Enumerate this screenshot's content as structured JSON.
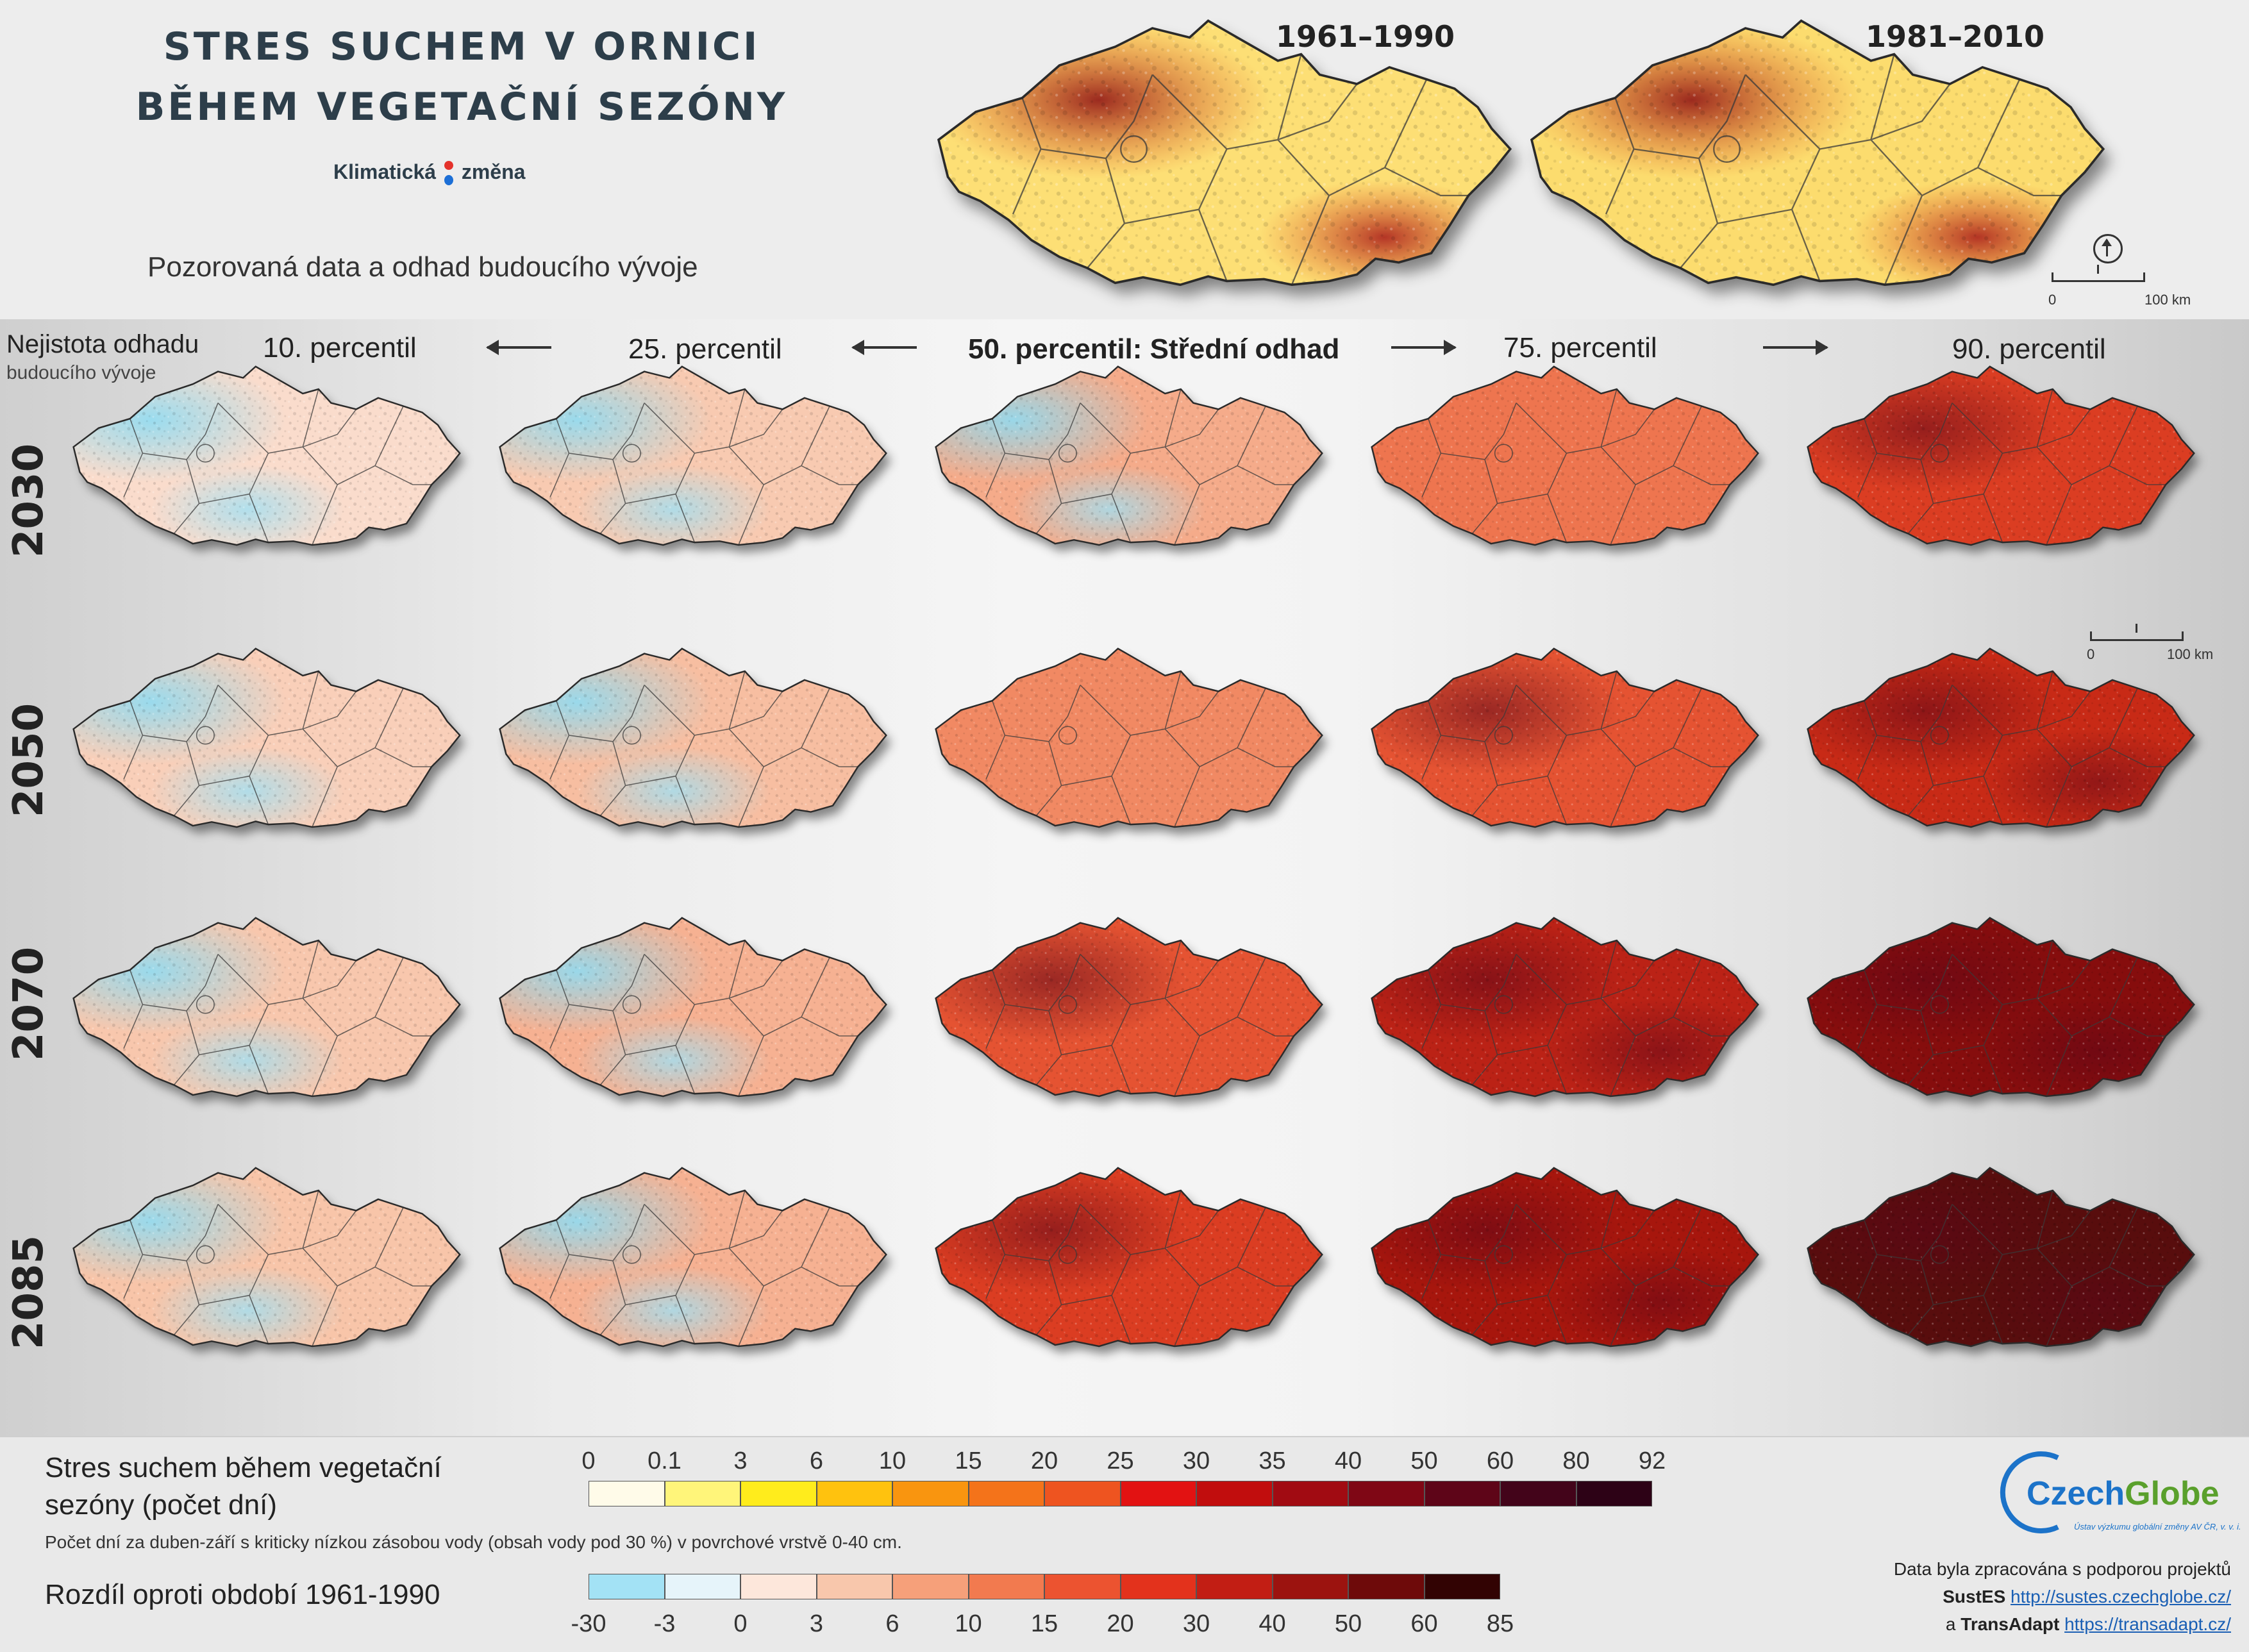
{
  "title": {
    "line1": "STRES SUCHEM V ORNICI",
    "line2": "BĚHEM VEGETAČNÍ SEZÓNY"
  },
  "brand": {
    "word1": "Klimatická",
    "word2": "změna"
  },
  "subtitle": "Pozorovaná data a odhad budoucího vývoje",
  "observed": [
    {
      "period": "1961–1990",
      "intensity": 0.55
    },
    {
      "period": "1981–2010",
      "intensity": 0.62
    }
  ],
  "scale_bar": {
    "start": "0",
    "end": "100 km"
  },
  "uncertainty": {
    "line1": "Nejistota odhadu",
    "line2": "budoucího vývoje"
  },
  "columns": [
    "10. percentil",
    "25. percentil",
    "50. percentil: Střední odhad",
    "75. percentil",
    "90. percentil"
  ],
  "rows": [
    "2030",
    "2050",
    "2070",
    "2085"
  ],
  "projection_intensity": [
    [
      0.05,
      0.12,
      0.22,
      0.38,
      0.55
    ],
    [
      0.1,
      0.16,
      0.32,
      0.48,
      0.62
    ],
    [
      0.13,
      0.2,
      0.48,
      0.66,
      0.8
    ],
    [
      0.14,
      0.2,
      0.55,
      0.72,
      0.92
    ]
  ],
  "legend1": {
    "title_line1": "Stres suchem během vegetační",
    "title_line2": "sezóny (počet dní)",
    "note": "Počet dní za duben-září s kriticky nízkou zásobou vody (obsah vody pod 30 %) v povrchové vrstvě 0-40 cm.",
    "ticks": [
      "0",
      "0.1",
      "3",
      "6",
      "10",
      "15",
      "20",
      "25",
      "30",
      "35",
      "40",
      "50",
      "60",
      "80",
      "92"
    ],
    "colors": [
      "#fffbe9",
      "#fff57a",
      "#ffec1c",
      "#ffc20e",
      "#f9950f",
      "#f4731a",
      "#ee5420",
      "#e21212",
      "#c10d0d",
      "#a10b12",
      "#7f0715",
      "#5e0518",
      "#43041a",
      "#2d0216"
    ]
  },
  "legend2": {
    "title": "Rozdíl oproti období 1961-1990",
    "ticks": [
      "-30",
      "-3",
      "0",
      "3",
      "6",
      "10",
      "15",
      "20",
      "30",
      "40",
      "50",
      "60",
      "85"
    ],
    "colors": [
      "#a3e2f5",
      "#e6f4fa",
      "#fde7db",
      "#f8c7ac",
      "#f6a07a",
      "#f27a4f",
      "#ec5330",
      "#e3321c",
      "#c21e14",
      "#9c130f",
      "#6e0a0a",
      "#320303"
    ]
  },
  "logo": {
    "text1": "Czech",
    "text2": "Globe",
    "tagline": "Ústav výzkumu globální změny AV ČR, v. v. i."
  },
  "credits": {
    "line1": "Data byla zpracována s podporou projektů",
    "p1_name": "SustES",
    "p1_url": "http://sustes.czechglobe.cz/",
    "p2_prefix": "a",
    "p2_name": "TransAdapt",
    "p2_url": "https://transadapt.cz/"
  }
}
